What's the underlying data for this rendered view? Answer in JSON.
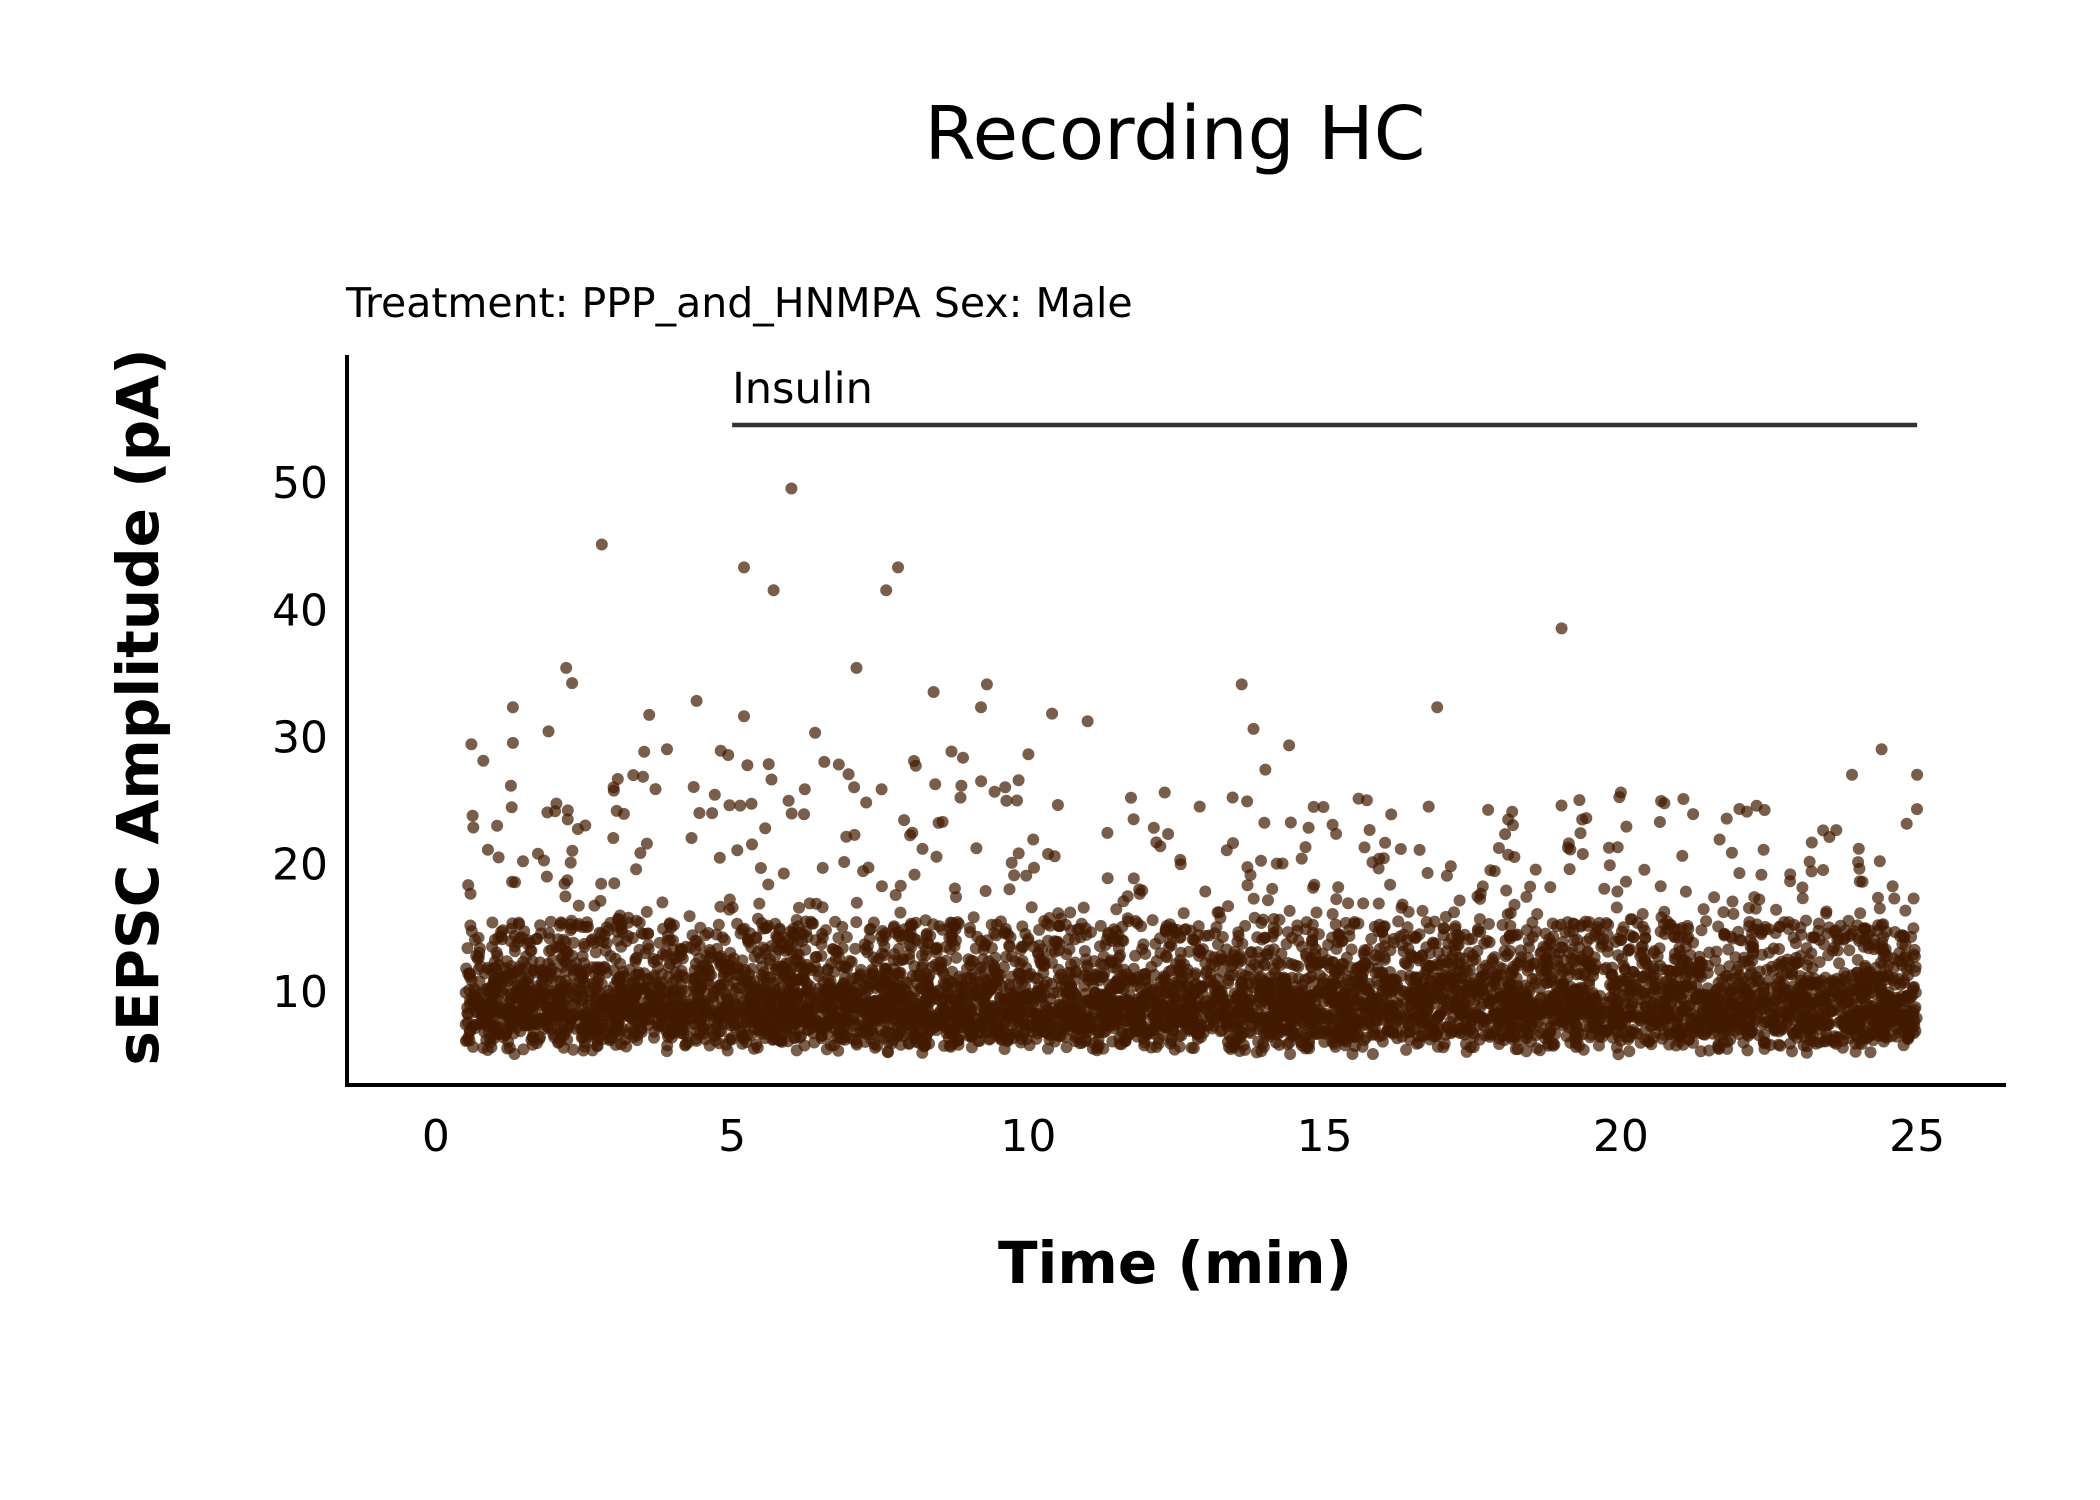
{
  "chart_data": {
    "type": "scatter",
    "title": "Recording HC",
    "subtitle": "Treatment: PPP_and_HNMPA  Sex: Male",
    "xlabel": "Time (min)",
    "ylabel": "sEPSC Amplitude (pA)",
    "xlim": [
      -1.5,
      26.5
    ],
    "ylim": [
      2.6,
      60.0
    ],
    "xticks": [
      0,
      5,
      10,
      15,
      20,
      25
    ],
    "yticks": [
      10,
      20,
      30,
      40,
      50
    ],
    "grid": false,
    "legend": "none",
    "point_color": "#411900",
    "point_opacity": 0.7,
    "annotation": {
      "label": "Insulin",
      "x_start": 5,
      "x_end": 25,
      "y": 54.5,
      "line_color": "#333333"
    },
    "outliers": [
      [
        0.6,
        29.4
      ],
      [
        0.8,
        28.1
      ],
      [
        1.3,
        32.3
      ],
      [
        1.3,
        29.5
      ],
      [
        1.9,
        30.4
      ],
      [
        2.2,
        35.4
      ],
      [
        2.3,
        34.2
      ],
      [
        2.8,
        45.1
      ],
      [
        3.6,
        31.7
      ],
      [
        3.9,
        29.0
      ],
      [
        4.4,
        32.8
      ],
      [
        5.2,
        43.3
      ],
      [
        5.2,
        31.6
      ],
      [
        5.7,
        41.5
      ],
      [
        6.0,
        49.5
      ],
      [
        6.4,
        30.3
      ],
      [
        7.1,
        35.4
      ],
      [
        7.6,
        41.5
      ],
      [
        7.8,
        43.3
      ],
      [
        8.4,
        33.5
      ],
      [
        9.2,
        32.3
      ],
      [
        9.3,
        34.1
      ],
      [
        10.4,
        31.8
      ],
      [
        11.0,
        31.2
      ],
      [
        13.6,
        34.1
      ],
      [
        13.8,
        30.6
      ],
      [
        14.4,
        29.3
      ],
      [
        16.9,
        32.3
      ],
      [
        19.0,
        38.5
      ],
      [
        24.4,
        29.0
      ],
      [
        25.0,
        27.0
      ],
      [
        20.0,
        25.6
      ],
      [
        19.3,
        25.0
      ],
      [
        22.0,
        24.3
      ],
      [
        10.0,
        28.6
      ],
      [
        12.3,
        25.6
      ],
      [
        14.0,
        27.4
      ],
      [
        3.0,
        26.0
      ],
      [
        6.8,
        27.8
      ],
      [
        23.9,
        27.0
      ]
    ],
    "series": [
      {
        "x_range": [
          0.5,
          25.0
        ],
        "n_points": 6200,
        "bulk_range_pA": [
          5.0,
          15.5
        ],
        "tail_max_pA": 29.0,
        "y_min_pA": 5.0,
        "median_pA": 9.0
      }
    ]
  }
}
